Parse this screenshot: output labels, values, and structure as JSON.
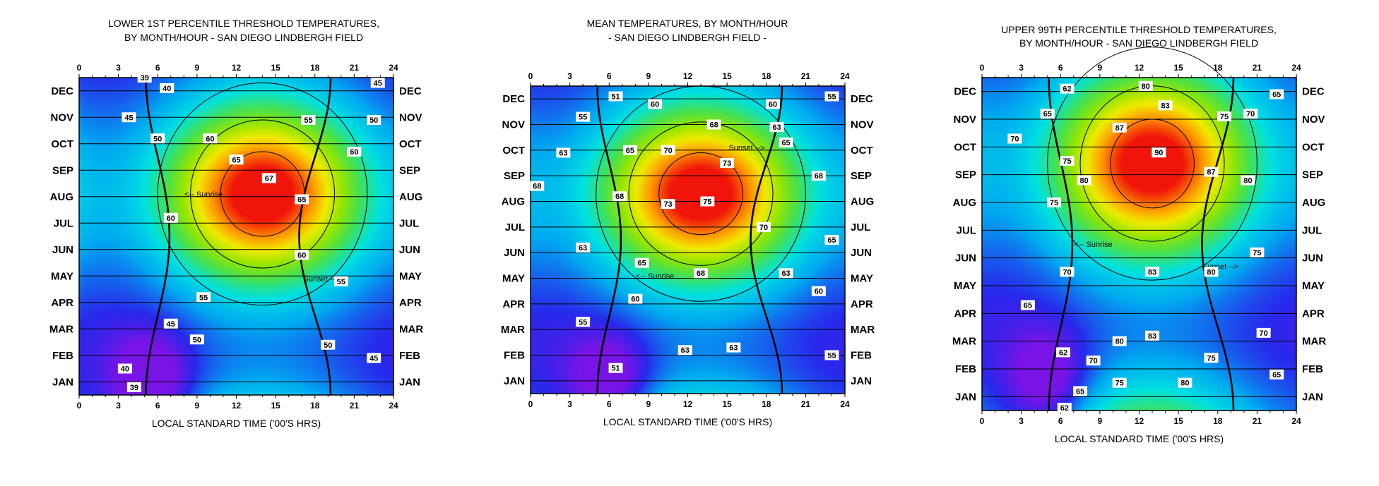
{
  "chart_data": [
    {
      "type": "heatmap",
      "title": "LOWER 1ST PERCENTILE THRESHOLD TEMPERATURES,",
      "subtitle": "BY MONTH/HOUR  - SAN DIEGO LINDBERGH FIELD",
      "xlabel": "LOCAL STANDARD TIME ('00'S HRS)",
      "x_ticks": [
        "0",
        "3",
        "6",
        "9",
        "12",
        "15",
        "18",
        "21",
        "24"
      ],
      "xlim": [
        0,
        24
      ],
      "months": [
        "JAN",
        "FEB",
        "MAR",
        "APR",
        "MAY",
        "JUN",
        "JUL",
        "AUG",
        "SEP",
        "OCT",
        "NOV",
        "DEC"
      ],
      "peak": {
        "hour": 14,
        "month": 8.1,
        "value": 67
      },
      "trough": {
        "hour": 5.5,
        "month": 1,
        "value": 39
      },
      "colorscale": "violet-blue-cyan-green-yellow-orange-red",
      "value_range": [
        38,
        68
      ],
      "annotations": [
        "<-- Sunrise",
        "Sunset -->"
      ],
      "contour_labels": [
        {
          "text": "39",
          "hour": 5,
          "month": 12.5
        },
        {
          "text": "40",
          "hour": 6.7,
          "month": 12.1
        },
        {
          "text": "45",
          "hour": 22.8,
          "month": 12.3
        },
        {
          "text": "45",
          "hour": 3.8,
          "month": 11.0
        },
        {
          "text": "55",
          "hour": 17.5,
          "month": 10.9
        },
        {
          "text": "50",
          "hour": 22.5,
          "month": 10.9
        },
        {
          "text": "50",
          "hour": 6,
          "month": 10.2
        },
        {
          "text": "60",
          "hour": 10,
          "month": 10.2
        },
        {
          "text": "60",
          "hour": 21,
          "month": 9.7
        },
        {
          "text": "65",
          "hour": 12,
          "month": 9.4
        },
        {
          "text": "67",
          "hour": 14.5,
          "month": 8.7
        },
        {
          "text": "65",
          "hour": 17,
          "month": 7.9
        },
        {
          "text": "60",
          "hour": 7,
          "month": 7.2
        },
        {
          "text": "60",
          "hour": 17,
          "month": 5.8
        },
        {
          "text": "55",
          "hour": 20,
          "month": 4.8
        },
        {
          "text": "55",
          "hour": 9.5,
          "month": 4.2
        },
        {
          "text": "45",
          "hour": 7,
          "month": 3.2
        },
        {
          "text": "50",
          "hour": 9,
          "month": 2.6
        },
        {
          "text": "50",
          "hour": 19,
          "month": 2.4
        },
        {
          "text": "45",
          "hour": 22.5,
          "month": 1.9
        },
        {
          "text": "40",
          "hour": 3.5,
          "month": 1.5
        },
        {
          "text": "39",
          "hour": 4.2,
          "month": 0.8
        }
      ]
    },
    {
      "type": "heatmap",
      "title": "MEAN TEMPERATURES,  BY MONTH/HOUR",
      "subtitle": "- SAN DIEGO LINDBERGH FIELD -",
      "xlabel": "LOCAL STANDARD TIME ('00'S HRS)",
      "x_ticks": [
        "0",
        "3",
        "6",
        "9",
        "12",
        "15",
        "18",
        "21",
        "24"
      ],
      "xlim": [
        0,
        24
      ],
      "months": [
        "JAN",
        "FEB",
        "MAR",
        "APR",
        "MAY",
        "JUN",
        "JUL",
        "AUG",
        "SEP",
        "OCT",
        "NOV",
        "DEC"
      ],
      "peak": {
        "hour": 13,
        "month": 8.3,
        "value": 75
      },
      "trough": {
        "hour": 6,
        "month": 1,
        "value": 51
      },
      "colorscale": "violet-blue-cyan-green-yellow-orange-red",
      "value_range": [
        50,
        76
      ],
      "annotations": [
        "Sunset -->",
        "<-- Sunrise"
      ],
      "contour_labels": [
        {
          "text": "51",
          "hour": 6.5,
          "month": 12.1
        },
        {
          "text": "55",
          "hour": 23,
          "month": 12.1
        },
        {
          "text": "60",
          "hour": 9.5,
          "month": 11.8
        },
        {
          "text": "60",
          "hour": 18.5,
          "month": 11.8
        },
        {
          "text": "55",
          "hour": 4,
          "month": 11.3
        },
        {
          "text": "68",
          "hour": 14,
          "month": 11.0
        },
        {
          "text": "63",
          "hour": 18.8,
          "month": 10.9
        },
        {
          "text": "65",
          "hour": 19.5,
          "month": 10.3
        },
        {
          "text": "63",
          "hour": 2.5,
          "month": 9.9
        },
        {
          "text": "65",
          "hour": 7.6,
          "month": 10.0
        },
        {
          "text": "70",
          "hour": 10.5,
          "month": 10.0
        },
        {
          "text": "73",
          "hour": 15,
          "month": 9.5
        },
        {
          "text": "68",
          "hour": 22,
          "month": 9.0
        },
        {
          "text": "68",
          "hour": 0.5,
          "month": 8.6
        },
        {
          "text": "68",
          "hour": 6.8,
          "month": 8.2
        },
        {
          "text": "73",
          "hour": 10.5,
          "month": 7.9
        },
        {
          "text": "75",
          "hour": 13.5,
          "month": 8.0
        },
        {
          "text": "70",
          "hour": 17.8,
          "month": 7.0
        },
        {
          "text": "65",
          "hour": 23,
          "month": 6.5
        },
        {
          "text": "63",
          "hour": 4,
          "month": 6.2
        },
        {
          "text": "65",
          "hour": 8.5,
          "month": 5.6
        },
        {
          "text": "68",
          "hour": 13,
          "month": 5.2
        },
        {
          "text": "63",
          "hour": 19.5,
          "month": 5.2
        },
        {
          "text": "60",
          "hour": 22,
          "month": 4.5
        },
        {
          "text": "60",
          "hour": 8,
          "month": 4.2
        },
        {
          "text": "55",
          "hour": 4,
          "month": 3.3
        },
        {
          "text": "63",
          "hour": 11.8,
          "month": 2.2
        },
        {
          "text": "63",
          "hour": 15.5,
          "month": 2.3
        },
        {
          "text": "55",
          "hour": 23,
          "month": 2.0
        },
        {
          "text": "51",
          "hour": 6.5,
          "month": 1.5
        }
      ]
    },
    {
      "type": "heatmap",
      "title": "UPPER 99TH PERCENTILE THRESHOLD TEMPERATURES,",
      "subtitle": "BY MONTH/HOUR  - SAN DIEGO LINDBERGH FIELD",
      "xlabel": "LOCAL STANDARD TIME ('00'S HRS)",
      "x_ticks": [
        "0",
        "3",
        "6",
        "9",
        "12",
        "15",
        "18",
        "21",
        "24"
      ],
      "xlim": [
        0,
        24
      ],
      "months": [
        "JAN",
        "FEB",
        "MAR",
        "APR",
        "MAY",
        "JUN",
        "JUL",
        "AUG",
        "SEP",
        "OCT",
        "NOV",
        "DEC"
      ],
      "peak": {
        "hour": 13,
        "month": 9.4,
        "value": 90
      },
      "trough": {
        "hour": 5,
        "month": 1.5,
        "value": 62
      },
      "colorscale": "violet-blue-cyan-green-yellow-orange-red",
      "value_range": [
        60,
        92
      ],
      "annotations": [
        "<-- Sunrise",
        "Sunset -->"
      ],
      "contour_labels": [
        {
          "text": "62",
          "hour": 6.5,
          "month": 12.1
        },
        {
          "text": "80",
          "hour": 12.5,
          "month": 12.2
        },
        {
          "text": "65",
          "hour": 22.5,
          "month": 11.9
        },
        {
          "text": "83",
          "hour": 14,
          "month": 11.5
        },
        {
          "text": "65",
          "hour": 5,
          "month": 11.2
        },
        {
          "text": "75",
          "hour": 18.5,
          "month": 11.1
        },
        {
          "text": "70",
          "hour": 20.5,
          "month": 11.2
        },
        {
          "text": "87",
          "hour": 10.5,
          "month": 10.7
        },
        {
          "text": "70",
          "hour": 2.5,
          "month": 10.3
        },
        {
          "text": "90",
          "hour": 13.5,
          "month": 9.8
        },
        {
          "text": "75",
          "hour": 6.5,
          "month": 9.5
        },
        {
          "text": "87",
          "hour": 17.5,
          "month": 9.1
        },
        {
          "text": "80",
          "hour": 7.8,
          "month": 8.8
        },
        {
          "text": "80",
          "hour": 20.3,
          "month": 8.8
        },
        {
          "text": "75",
          "hour": 5.5,
          "month": 8.0
        },
        {
          "text": "75",
          "hour": 21,
          "month": 6.2
        },
        {
          "text": "70",
          "hour": 6.5,
          "month": 5.5
        },
        {
          "text": "83",
          "hour": 13,
          "month": 5.5
        },
        {
          "text": "80",
          "hour": 17.5,
          "month": 5.5
        },
        {
          "text": "65",
          "hour": 3.5,
          "month": 4.3
        },
        {
          "text": "83",
          "hour": 13,
          "month": 3.2
        },
        {
          "text": "80",
          "hour": 10.5,
          "month": 3.0
        },
        {
          "text": "70",
          "hour": 21.5,
          "month": 3.3
        },
        {
          "text": "62",
          "hour": 6.2,
          "month": 2.6
        },
        {
          "text": "70",
          "hour": 8.5,
          "month": 2.3
        },
        {
          "text": "75",
          "hour": 17.5,
          "month": 2.4
        },
        {
          "text": "65",
          "hour": 22.5,
          "month": 1.8
        },
        {
          "text": "75",
          "hour": 10.5,
          "month": 1.5
        },
        {
          "text": "80",
          "hour": 15.5,
          "month": 1.5
        },
        {
          "text": "65",
          "hour": 7.5,
          "month": 1.2
        },
        {
          "text": "62",
          "hour": 6.3,
          "month": 0.6
        }
      ]
    }
  ]
}
